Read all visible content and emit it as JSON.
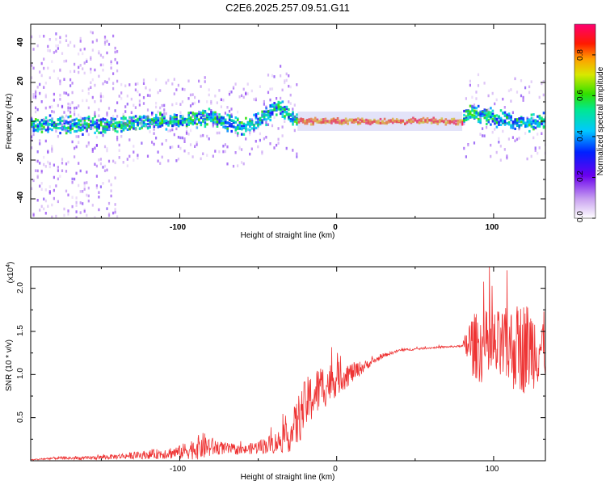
{
  "figure_title": "C2E6.2025.257.09.51.G11",
  "chart_data": [
    {
      "type": "heatmap",
      "panel": "top",
      "xlabel": "Height of straight line (km)",
      "ylabel": "Frequency (Hz)",
      "xlim": [
        -195,
        133
      ],
      "ylim": [
        -50,
        50
      ],
      "xticks": [
        "-100",
        "0",
        "100"
      ],
      "yticks": [
        "-40",
        "-20",
        "0",
        "20",
        "40"
      ],
      "colorbar": {
        "label": "Normalized spectral amplitude",
        "range": [
          0,
          0.95
        ],
        "ticks": [
          "0.0",
          "0.2",
          "0.4",
          "0.6",
          "0.8"
        ]
      },
      "ridge": [
        {
          "x": -190,
          "freq": -2
        },
        {
          "x": -150,
          "freq": -2
        },
        {
          "x": -110,
          "freq": 0
        },
        {
          "x": -80,
          "freq": 2
        },
        {
          "x": -60,
          "freq": -3
        },
        {
          "x": -45,
          "freq": 3
        },
        {
          "x": -38,
          "freq": 8
        },
        {
          "x": -30,
          "freq": 2
        },
        {
          "x": -20,
          "freq": 0
        },
        {
          "x": 0,
          "freq": 0
        },
        {
          "x": 40,
          "freq": 0
        },
        {
          "x": 80,
          "freq": 0
        },
        {
          "x": 83,
          "freq": 5
        },
        {
          "x": 100,
          "freq": 2
        },
        {
          "x": 120,
          "freq": -1
        },
        {
          "x": 133,
          "freq": 0
        }
      ]
    },
    {
      "type": "line",
      "panel": "bottom",
      "xlabel": "Height of straight line (km)",
      "ylabel": "SNR (10 * v/v)",
      "yscale_label": "(x10",
      "yscale_exp": "4",
      "xlim": [
        -195,
        133
      ],
      "ylim": [
        0,
        2.25
      ],
      "xticks": [
        "-100",
        "0",
        "100"
      ],
      "yticks": [
        "0.5",
        "1.0",
        "1.5",
        "2.0"
      ],
      "series": [
        {
          "name": "SNR",
          "color": "#ee3333",
          "x": [
            -195,
            -180,
            -160,
            -140,
            -120,
            -100,
            -85,
            -75,
            -60,
            -50,
            -40,
            -30,
            -25,
            -20,
            -10,
            0,
            10,
            20,
            30,
            40,
            60,
            80,
            85,
            95,
            105,
            120,
            133
          ],
          "y": [
            0.01,
            0.03,
            0.03,
            0.05,
            0.07,
            0.1,
            0.17,
            0.15,
            0.12,
            0.16,
            0.2,
            0.28,
            0.45,
            0.65,
            0.85,
            0.95,
            1.02,
            1.12,
            1.22,
            1.28,
            1.31,
            1.33,
            1.35,
            1.3,
            1.3,
            1.32,
            1.32
          ],
          "spread": [
            0.005,
            0.015,
            0.02,
            0.03,
            0.05,
            0.08,
            0.16,
            0.08,
            0.05,
            0.08,
            0.12,
            0.18,
            0.3,
            0.3,
            0.28,
            0.2,
            0.12,
            0.05,
            0.02,
            0.015,
            0.01,
            0.01,
            0.35,
            0.45,
            0.45,
            0.55,
            0.4
          ]
        }
      ]
    }
  ]
}
